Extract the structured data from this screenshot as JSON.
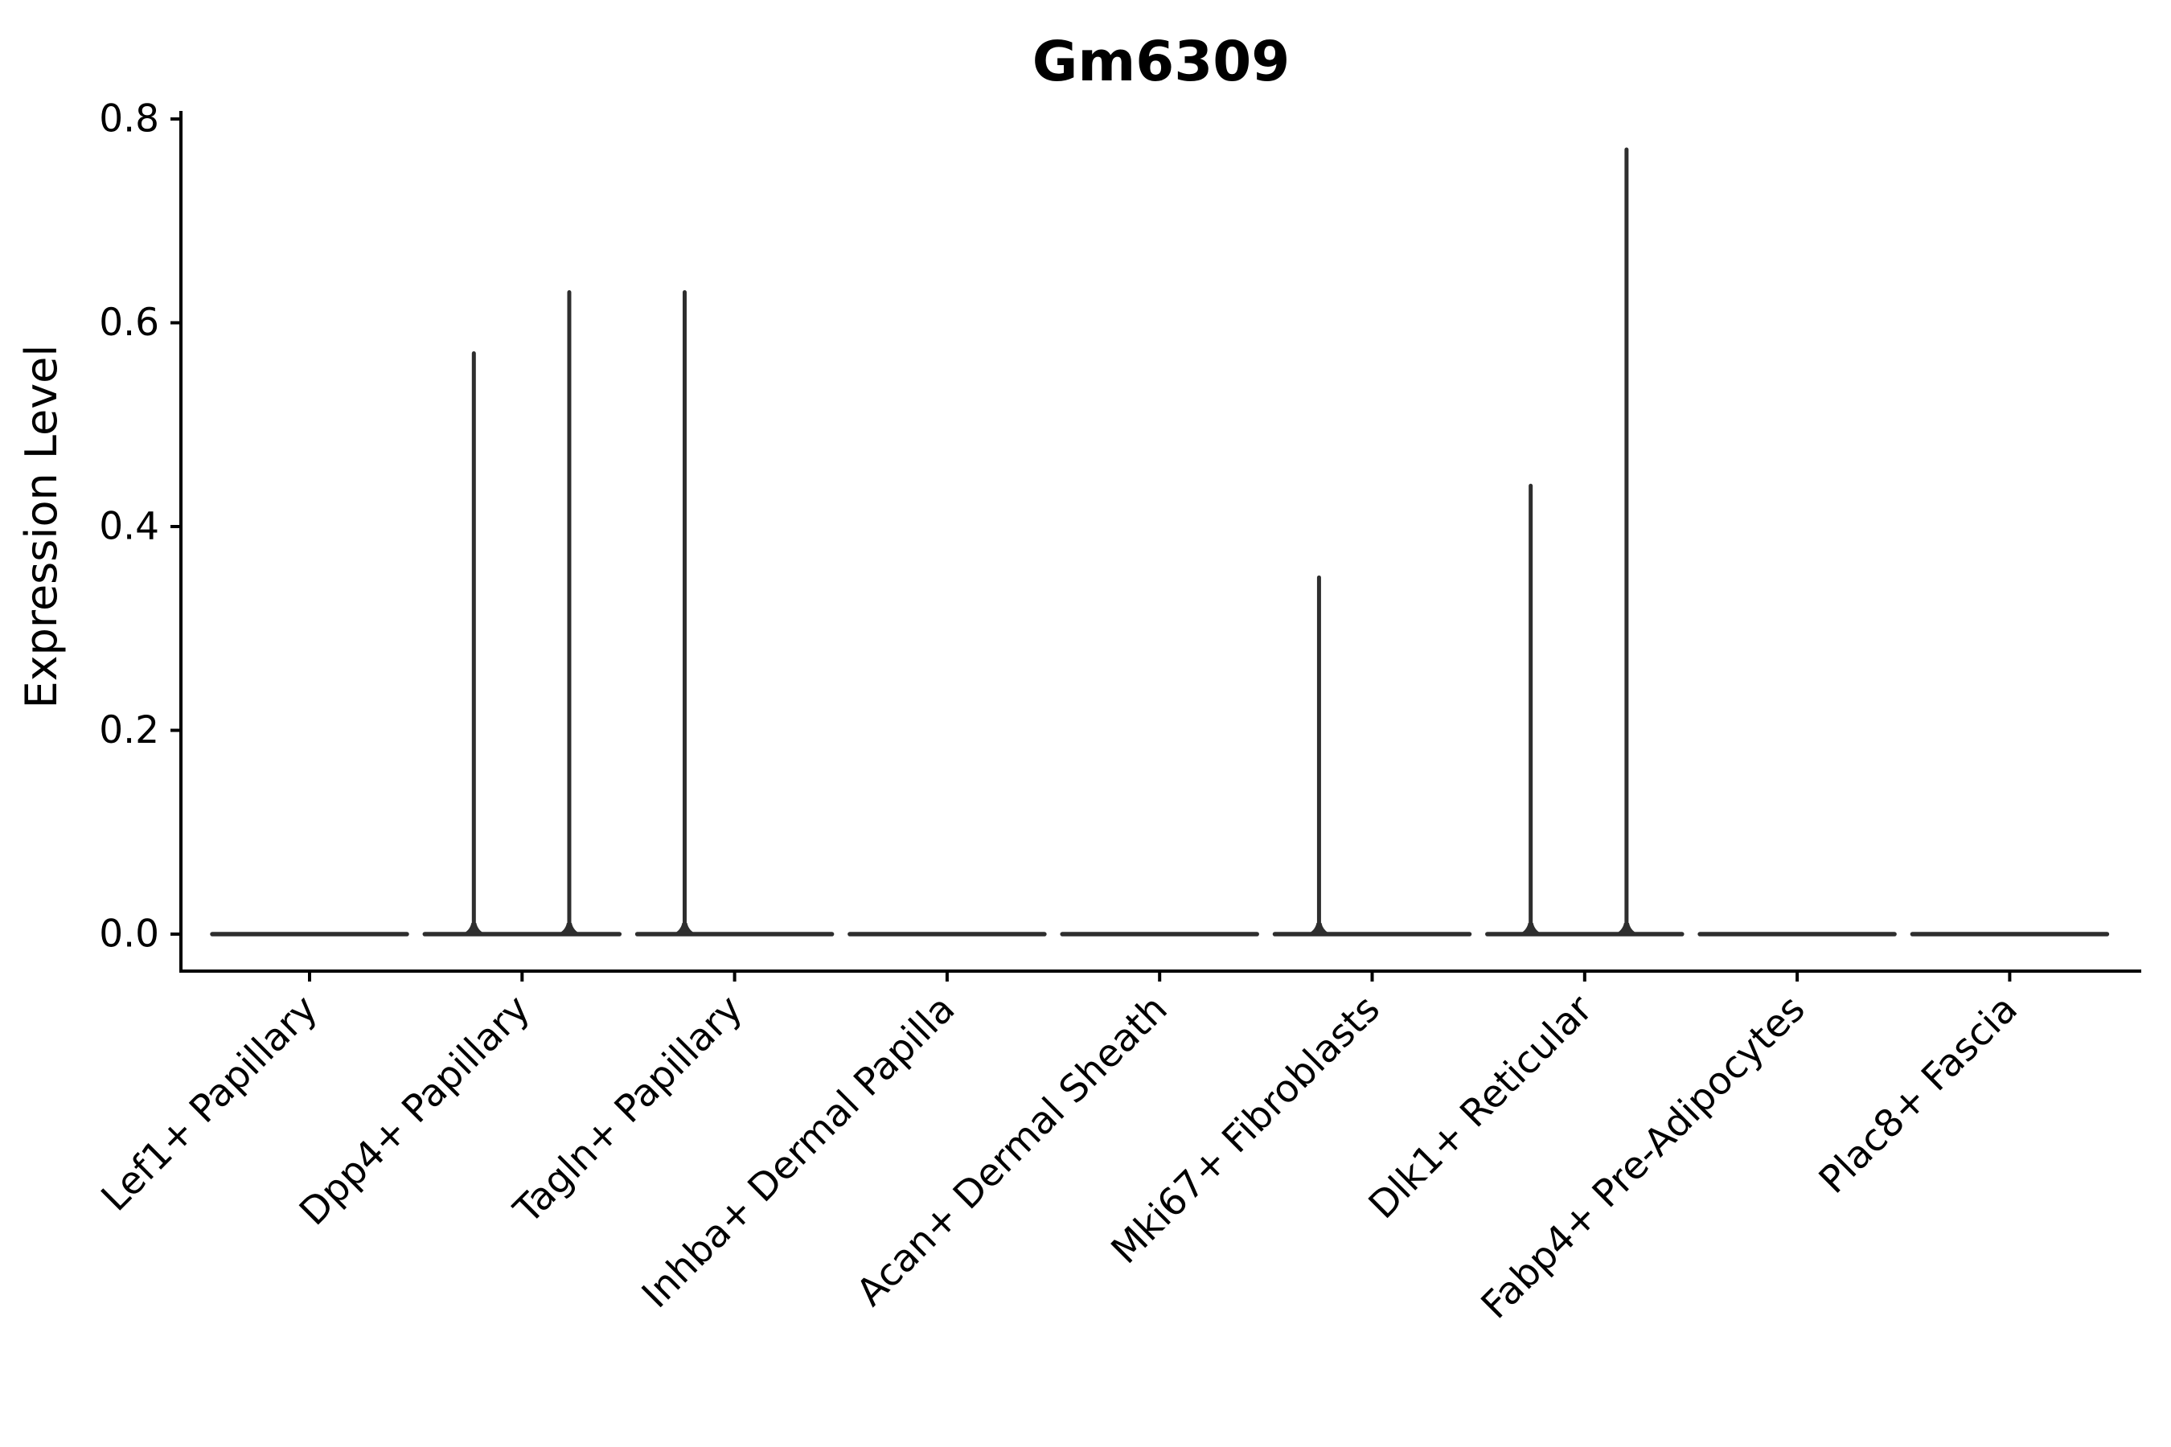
{
  "figure": {
    "title": "Gm6309"
  },
  "axes": {
    "ylabel": "Expression Level",
    "ytick_labels": [
      "0.0",
      "0.2",
      "0.4",
      "0.6",
      "0.8"
    ]
  },
  "chart_data": {
    "type": "violin",
    "title": "Gm6309",
    "xlabel": "",
    "ylabel": "Expression Level",
    "ylim": [
      0,
      0.8
    ],
    "yticks": [
      0.0,
      0.2,
      0.4,
      0.6,
      0.8
    ],
    "grid": false,
    "legend": null,
    "categories": [
      "Lef1+ Papillary",
      "Dpp4+ Papillary",
      "Tagln+ Papillary",
      "Inhba+ Dermal Papilla",
      "Acan+ Dermal Sheath",
      "Mki67+ Fibroblasts",
      "Dlk1+ Reticular",
      "Fabp4+ Pre-Adipocytes",
      "Plac8+ Fascia"
    ],
    "violins": [
      {
        "category": "Lef1+ Papillary",
        "baseline_value": 0.0,
        "spikes": []
      },
      {
        "category": "Dpp4+ Papillary",
        "baseline_value": 0.0,
        "spikes": [
          {
            "value": 0.57,
            "x_offset_frac": -0.227
          },
          {
            "value": 0.63,
            "x_offset_frac": 0.222
          }
        ]
      },
      {
        "category": "Tagln+ Papillary",
        "baseline_value": 0.0,
        "spikes": [
          {
            "value": 0.63,
            "x_offset_frac": -0.235
          }
        ]
      },
      {
        "category": "Inhba+ Dermal Papilla",
        "baseline_value": 0.0,
        "spikes": []
      },
      {
        "category": "Acan+ Dermal Sheath",
        "baseline_value": 0.0,
        "spikes": []
      },
      {
        "category": "Mki67+ Fibroblasts",
        "baseline_value": 0.0,
        "spikes": [
          {
            "value": 0.35,
            "x_offset_frac": -0.25
          }
        ]
      },
      {
        "category": "Dlk1+ Reticular",
        "baseline_value": 0.0,
        "spikes": [
          {
            "value": 0.44,
            "x_offset_frac": -0.254
          },
          {
            "value": 0.77,
            "x_offset_frac": 0.197
          }
        ]
      },
      {
        "category": "Fabp4+ Pre-Adipocytes",
        "baseline_value": 0.0,
        "spikes": []
      },
      {
        "category": "Plac8+ Fascia",
        "baseline_value": 0.0,
        "spikes": []
      }
    ],
    "violin_body_width_frac": 0.91
  },
  "colors": {
    "background": "#ffffff",
    "axis": "#000000",
    "text": "#000000",
    "violin_line": "#2e2e2e"
  }
}
